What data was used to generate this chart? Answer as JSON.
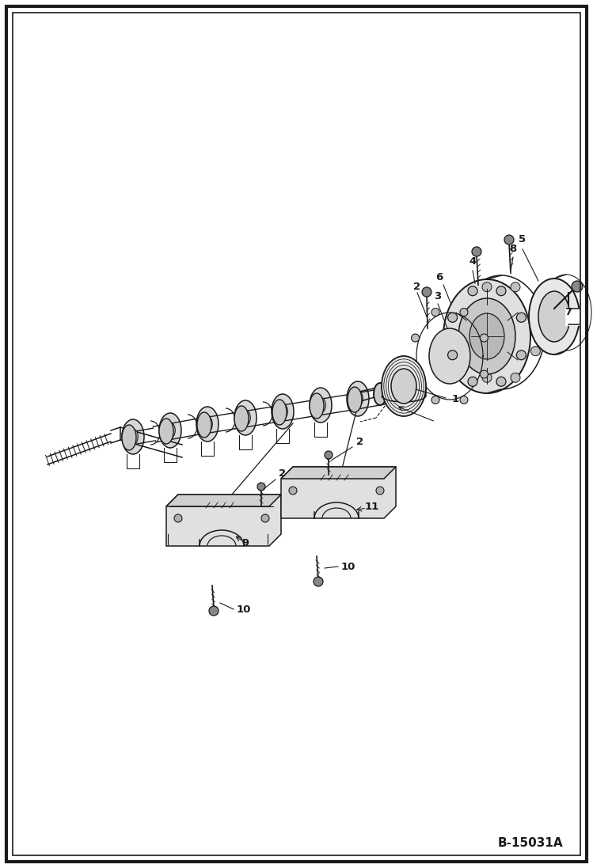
{
  "figure_width": 7.49,
  "figure_height": 10.97,
  "dpi": 100,
  "bg_color": "#ffffff",
  "border_outer_lw": 3.0,
  "border_inner_lw": 1.2,
  "watermark": "B-15031A",
  "col": "#1a1a1a",
  "label_fontsize": 9.5,
  "label_fontweight": "bold",
  "parts": {
    "crankshaft_color": "#e0e0e0",
    "bearing_color": "#d8d8d8",
    "housing_color": "#e8e8e8",
    "cap_color": "#e0e0e0"
  }
}
